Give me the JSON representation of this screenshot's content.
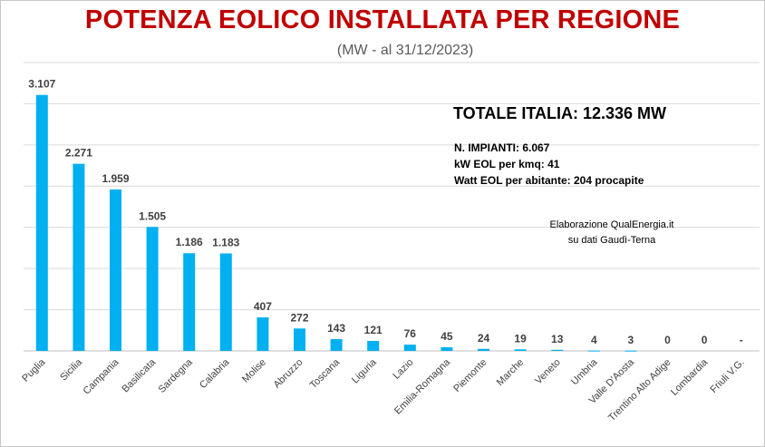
{
  "header": {
    "title": "POTENZA EOLICO INSTALLATA PER REGIONE",
    "subtitle": "(MW - al 31/12/2023)"
  },
  "summary": {
    "total": "TOTALE  ITALIA: 12.336 MW",
    "impianti": "N. IMPIANTI: 6.067",
    "kmq": "kW EOL per kmq: 41",
    "abitante": "Watt EOL per abitante: 204  procapite"
  },
  "credit": {
    "line1": "Elaborazione QualEnergia.it",
    "line2": "su dati Gaudì-Terna"
  },
  "colors": {
    "bar": "#00b0f0",
    "title": "#c00000",
    "grid": "#d9d9d9"
  },
  "chart_data": {
    "type": "bar",
    "title": "POTENZA EOLICO INSTALLATA PER REGIONE",
    "subtitle": "(MW - al 31/12/2023)",
    "categories": [
      "Puglia",
      "Sicilia",
      "Campania",
      "Basilicata",
      "Sardegna",
      "Calabria",
      "Molise",
      "Abruzzo",
      "Toscana",
      "Liguria",
      "Lazio",
      "Emilia-Romagna",
      "Piemonte",
      "Marche",
      "Veneto",
      "Umbria",
      "Valle D'Aosta",
      "Trentino Alto Adige",
      "Lombardia",
      "Friuli V.G."
    ],
    "values": [
      3107,
      2271,
      1959,
      1505,
      1186,
      1183,
      407,
      272,
      143,
      121,
      76,
      45,
      24,
      19,
      13,
      4,
      3,
      0,
      0,
      null
    ],
    "data_labels": [
      "3.107",
      "2.271",
      "1.959",
      "1.505",
      "1.186",
      "1.183",
      "407",
      "272",
      "143",
      "121",
      "76",
      "45",
      "24",
      "19",
      "13",
      "4",
      "3",
      "0",
      "0",
      "-"
    ],
    "ylim": [
      0,
      3500
    ],
    "grid": true,
    "xlabel": "",
    "ylabel": ""
  }
}
